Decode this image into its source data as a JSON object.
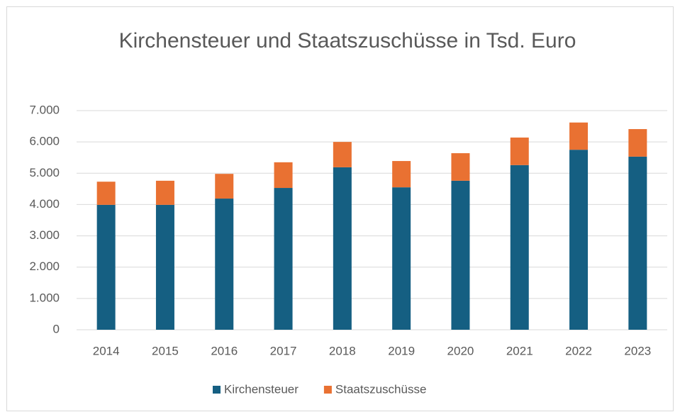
{
  "chart_data": {
    "type": "stacked_bar",
    "title": "Kirchensteuer und Staatszuschüsse in Tsd. Euro",
    "categories": [
      "2014",
      "2015",
      "2016",
      "2017",
      "2018",
      "2019",
      "2020",
      "2021",
      "2022",
      "2023"
    ],
    "series": [
      {
        "name": "Kirchensteuer",
        "color": "#155f82",
        "values": [
          3990,
          3990,
          4190,
          4530,
          5190,
          4550,
          4760,
          5260,
          5750,
          5530
        ]
      },
      {
        "name": "Staatszuschüsse",
        "color": "#e97132",
        "values": [
          740,
          770,
          790,
          820,
          810,
          840,
          880,
          880,
          870,
          880
        ]
      }
    ],
    "ylim": [
      0,
      7000
    ],
    "yticks": [
      0,
      {
        "value": 1000,
        "label": "1.000"
      },
      {
        "value": 2000,
        "label": "2.000"
      },
      {
        "value": 3000,
        "label": "3.000"
      },
      {
        "value": 4000,
        "label": "4.000"
      },
      {
        "value": 5000,
        "label": "5.000"
      },
      {
        "value": 6000,
        "label": "6.000"
      },
      {
        "value": 7000,
        "label": "7.000"
      }
    ],
    "grid": true,
    "legend": "bottom"
  }
}
